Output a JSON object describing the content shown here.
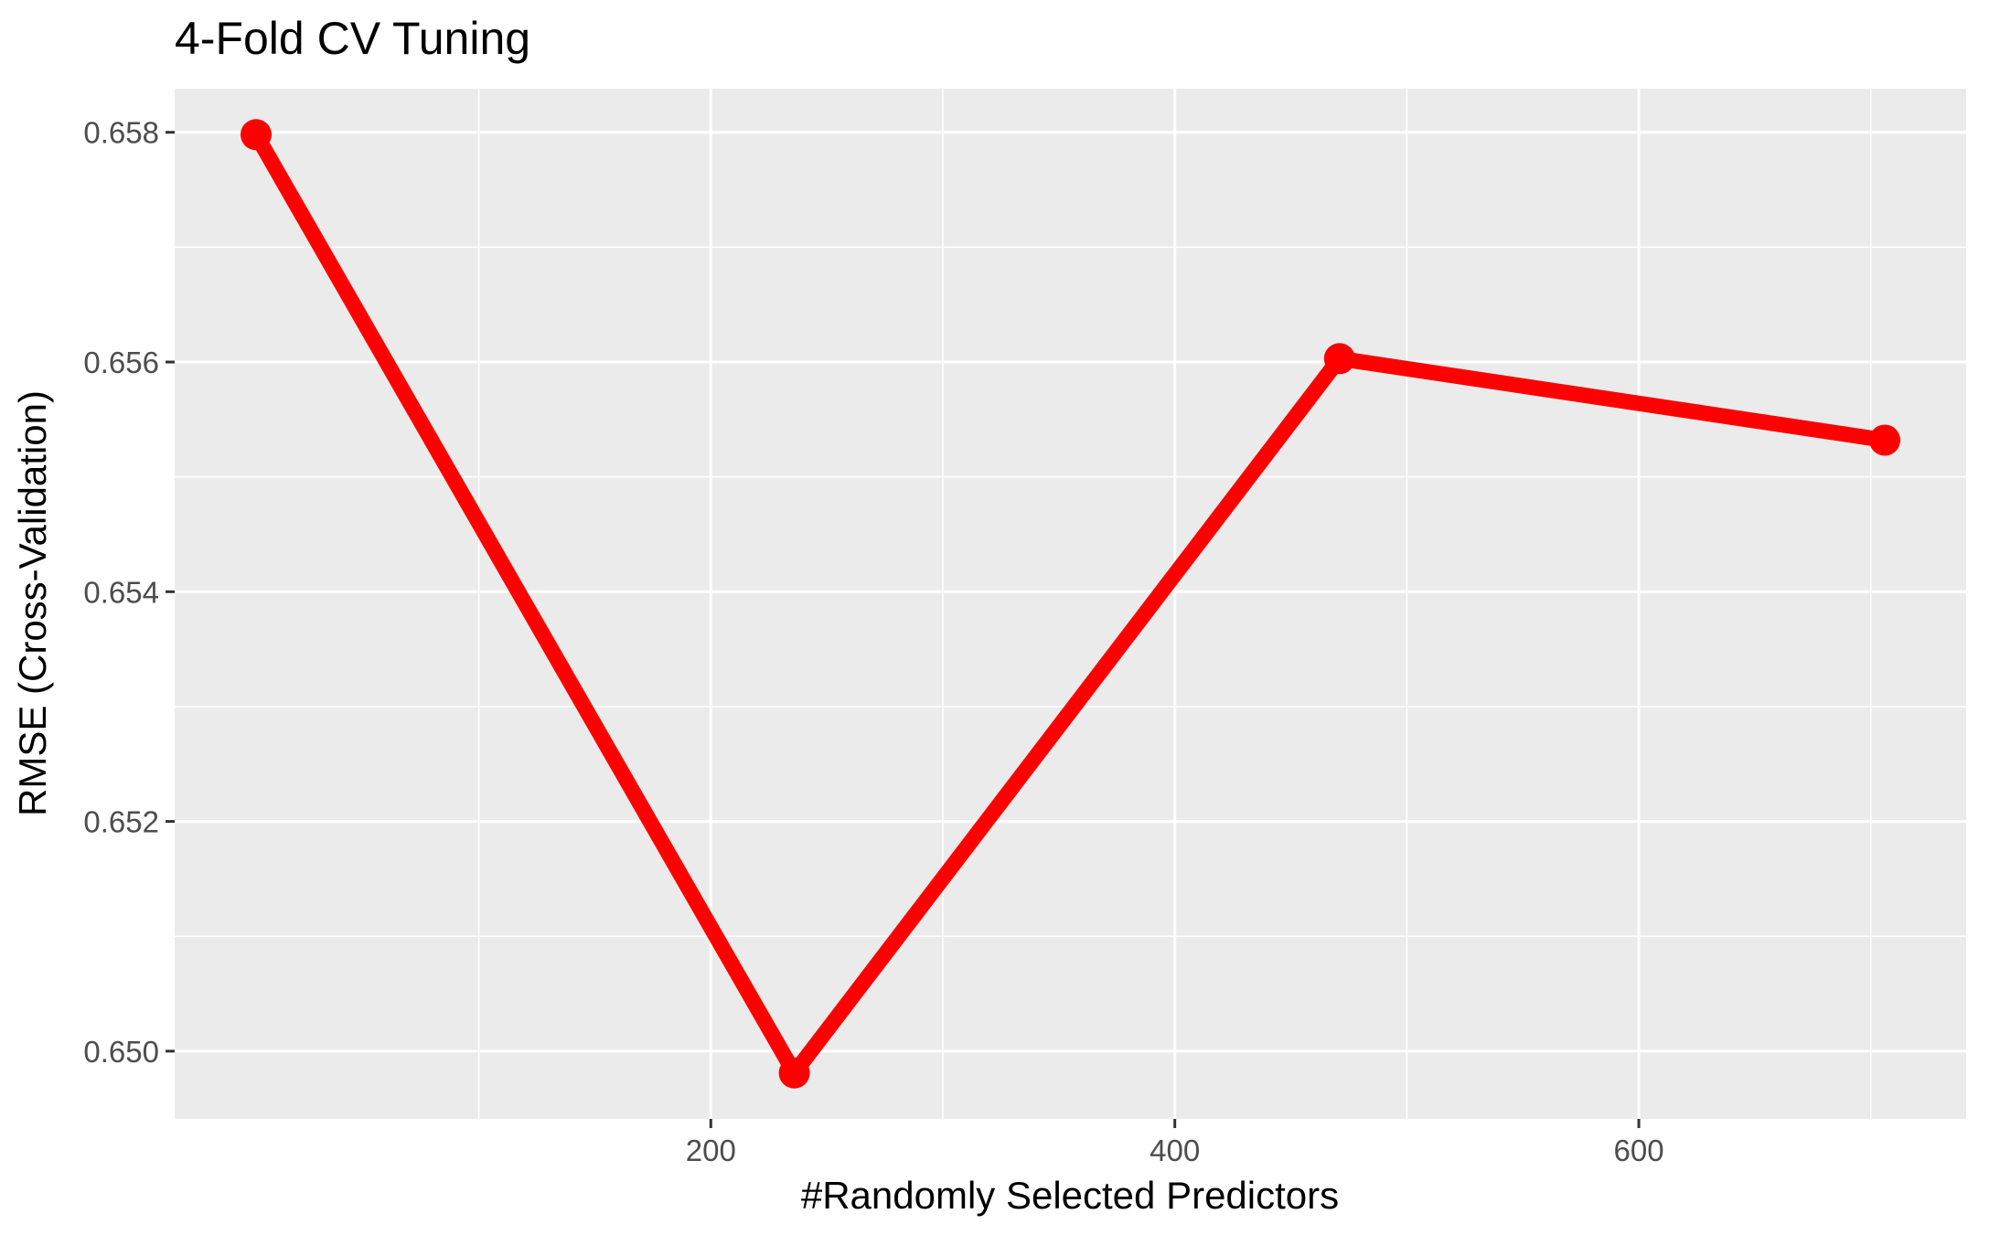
{
  "chart_data": {
    "type": "line",
    "title": "4-Fold CV Tuning",
    "xlabel": "#Randomly Selected Predictors",
    "ylabel": "RMSE (Cross-Validation)",
    "x": [
      4,
      236,
      471,
      706
    ],
    "series": [
      {
        "values": [
          0.65798,
          0.64981,
          0.65603,
          0.65532
        ],
        "color": "#ff0000"
      }
    ],
    "xticks": [
      200,
      400,
      600
    ],
    "xtick_labels": [
      "200",
      "400",
      "600"
    ],
    "yticks": [
      0.65,
      0.652,
      0.654,
      0.656,
      0.658
    ],
    "ytick_labels": [
      "0.650",
      "0.652",
      "0.654",
      "0.656",
      "0.658"
    ],
    "xlim": [
      -31.1,
      741.1
    ],
    "ylim": [
      0.64941,
      0.65838
    ],
    "grid": true,
    "panel_background": "#ebebeb",
    "grid_color": "#ffffff",
    "legend": "none"
  }
}
